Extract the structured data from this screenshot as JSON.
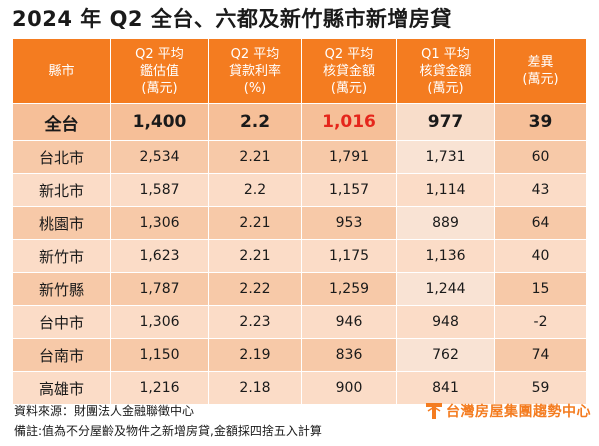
{
  "title": "2024 年 Q2 全台、六都及新竹縣市新增房貸",
  "headers": [
    [
      "縣市"
    ],
    [
      "Q2 平均",
      "鑑估值",
      "(萬元)"
    ],
    [
      "Q2 平均",
      "貸款利率",
      "(%)"
    ],
    [
      "Q2 平均",
      "核貸金額",
      "(萬元)"
    ],
    [
      "Q1 平均",
      "核貸金額",
      "(萬元)"
    ],
    [
      "差異",
      "(萬元)"
    ]
  ],
  "total_row": [
    "全台",
    "1,400",
    "2.2",
    "1,016",
    "977",
    "39"
  ],
  "rows": [
    [
      "台北市",
      "2,534",
      "2.21",
      "1,791",
      "1,731",
      "60"
    ],
    [
      "新北市",
      "1,587",
      "2.2",
      "1,157",
      "1,114",
      "43"
    ],
    [
      "桃園市",
      "1,306",
      "2.21",
      "953",
      "889",
      "64"
    ],
    [
      "新竹市",
      "1,623",
      "2.21",
      "1,175",
      "1,136",
      "40"
    ],
    [
      "新竹縣",
      "1,787",
      "2.22",
      "1,259",
      "1,244",
      "15"
    ],
    [
      "台中市",
      "1,306",
      "2.23",
      "946",
      "948",
      "-2"
    ],
    [
      "台南市",
      "1,150",
      "2.19",
      "836",
      "762",
      "74"
    ],
    [
      "高雄市",
      "1,216",
      "2.18",
      "900",
      "841",
      "59"
    ]
  ],
  "source": "資料來源：財團法人金融聯徵中心",
  "note": "備註:值為不分屋齡及物件之新增房貸,金額採四捨五入計算",
  "brand": "台灣房屋集團趨勢中心",
  "colors": {
    "header_bg": "#f47c20",
    "row_light": "#fbdcc7",
    "row_dark": "#f7c9a8",
    "highlight_red": "#e5261b",
    "brand_orange": "#f47c20"
  }
}
